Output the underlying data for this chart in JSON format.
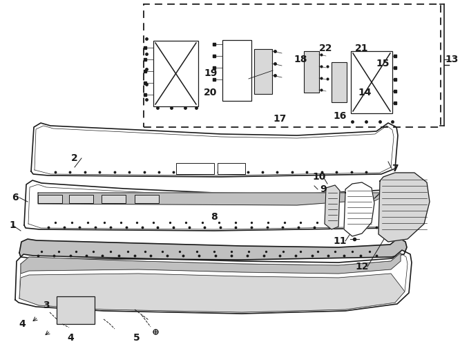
{
  "bg_color": "#ffffff",
  "line_color": "#1a1a1a",
  "gray_fill": "#b0b0b0",
  "light_gray": "#d8d8d8",
  "mid_gray": "#c0c0c0",
  "dark_gray": "#888888"
}
